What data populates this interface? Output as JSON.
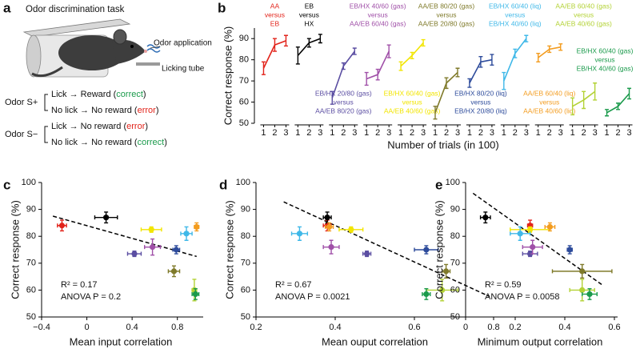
{
  "panel_labels": [
    "a",
    "b",
    "c",
    "d",
    "e"
  ],
  "panel_a": {
    "title": "Odor discrimination task",
    "callouts": [
      "Odor application",
      "Licking tube"
    ],
    "rules": [
      {
        "stimulus": "Odor S+",
        "outcomes": [
          [
            "Lick → Reward (",
            "correct",
            ")"
          ],
          [
            "No lick → No reward (",
            "error",
            ")"
          ]
        ]
      },
      {
        "stimulus": "Odor S−",
        "outcomes": [
          [
            "Lick → No reward (",
            "error",
            ")"
          ],
          [
            "No lick → No reward (",
            "correct",
            ")"
          ]
        ]
      }
    ]
  },
  "chart_data": [
    {
      "type": "line",
      "xlabel": "Number of trials (in 100)",
      "ylabel": "Correct response (%)",
      "x": [
        1,
        2,
        3
      ],
      "xlim": [
        1,
        3
      ],
      "xticks": [
        1,
        2,
        3
      ],
      "ylim": [
        50,
        95
      ],
      "yticks": [
        50,
        60,
        70,
        80,
        90
      ],
      "series": [
        {
          "name": [
            "AA",
            "versus",
            "EB"
          ],
          "color": "#e2231a",
          "values": [
            76,
            87,
            89
          ],
          "errors": [
            3,
            3,
            2.5
          ]
        },
        {
          "name": [
            "EB",
            "versus",
            "HX"
          ],
          "color": "#000000",
          "values": [
            82,
            88,
            90
          ],
          "errors": [
            4,
            2,
            2
          ]
        },
        {
          "name": [
            "EB/HX 20/80 (gas)",
            "versus",
            "AA/EB 80/20 (gas)"
          ],
          "color": "#5b4ea2",
          "values": [
            62,
            77,
            84
          ],
          "errors": [
            3,
            1.5,
            1.5
          ]
        },
        {
          "name": [
            "EB/HX 40/60 (gas)",
            "versus",
            "AA/EB 60/40 (gas)"
          ],
          "color": "#a050a8",
          "values": [
            71,
            73,
            84
          ],
          "errors": [
            3,
            2.5,
            3
          ]
        },
        {
          "name": [
            "EB/HX 60/40 (gas)",
            "versus",
            "AA/EB 40/60 (gas)"
          ],
          "color": "#f2e500",
          "values": [
            77,
            82,
            88
          ],
          "errors": [
            2,
            1.5,
            1.5
          ]
        },
        {
          "name": [
            "AA/EB 80/20 (gas)",
            "versus",
            "AA/EB 20/80 (gas)"
          ],
          "color": "#7f7a2a",
          "values": [
            55,
            69,
            74
          ],
          "errors": [
            3,
            2.5,
            2
          ]
        },
        {
          "name": [
            "EB/HX 80/20 (liq)",
            "versus",
            "EB/HX 20/80 (liq)"
          ],
          "color": "#2d4b9b",
          "values": [
            69,
            79,
            80
          ],
          "errors": [
            2,
            2.5,
            2.5
          ]
        },
        {
          "name": [
            "EB/HX 60/40 (liq)",
            "versus",
            "EB/HX 40/60 (liq)"
          ],
          "color": "#3fb8e8",
          "values": [
            70,
            83,
            90
          ],
          "errors": [
            4,
            2,
            1.5
          ]
        },
        {
          "name": [
            "AA/EB 60/40 (liq)",
            "versus",
            "AA/EB 40/60 (liq)"
          ],
          "color": "#f39c1f",
          "values": [
            81,
            85,
            86
          ],
          "errors": [
            2,
            1.5,
            1.5
          ]
        },
        {
          "name": [
            "AA/EB 60/40 (gas)",
            "versus",
            "AA/EB 40/60 (gas)"
          ],
          "color": "#b3d235",
          "values": [
            58,
            61,
            65
          ],
          "errors": [
            4,
            4,
            4
          ]
        },
        {
          "name": [
            "EB/HX 60/40 (gas)",
            "versus",
            "EB/HX 40/60 (gas)"
          ],
          "color": "#1a9a4b",
          "values": [
            55,
            58,
            64
          ],
          "errors": [
            1.5,
            1.5,
            2.5
          ]
        }
      ]
    },
    {
      "type": "scatter",
      "xlabel": "Mean input correlation",
      "ylabel": "Correct response (%)",
      "xlim": [
        -0.4,
        1.0
      ],
      "xticks": [
        {
          "value": -0.4,
          "label": "−0.4"
        },
        0,
        0.4,
        0.8
      ],
      "ylim": [
        50,
        100
      ],
      "yticks": [
        50,
        60,
        70,
        80,
        90,
        100
      ],
      "colors": [
        "#e2231a",
        "#000000",
        "#5b4ea2",
        "#a050a8",
        "#f2e500",
        "#7f7a2a",
        "#2d4b9b",
        "#3fb8e8",
        "#f39c1f",
        "#b3d235",
        "#1a9a4b"
      ],
      "x": [
        -0.22,
        0.17,
        0.42,
        0.58,
        0.57,
        0.77,
        0.79,
        0.88,
        0.97,
        0.95,
        0.96
      ],
      "x_errors": [
        0.04,
        0.1,
        0.06,
        0.07,
        0.09,
        0.05,
        0.03,
        0.05,
        0.02,
        0.02,
        0.03
      ],
      "values": [
        84,
        87,
        73.5,
        76,
        82.5,
        67,
        75,
        81,
        83.5,
        60,
        58.5
      ],
      "errors": [
        2,
        2,
        1,
        3,
        1,
        2,
        1.5,
        2.5,
        1.5,
        4,
        2
      ],
      "fit": {
        "x": [
          -0.3,
          0.97
        ],
        "values": [
          87.5,
          72.5
        ]
      },
      "annotations": [
        "R² = 0.17",
        "ANOVA P = 0.2"
      ]
    },
    {
      "type": "scatter",
      "xlabel": "Mean ouput correlation",
      "ylabel": "Correct response (%)",
      "xlim": [
        0.2,
        0.8
      ],
      "xticks": [
        0.2,
        0.4,
        0.6,
        0.8
      ],
      "ylim": [
        50,
        100
      ],
      "yticks": [
        50,
        60,
        70,
        80,
        90,
        100
      ],
      "colors": [
        "#e2231a",
        "#000000",
        "#5b4ea2",
        "#a050a8",
        "#f2e500",
        "#7f7a2a",
        "#2d4b9b",
        "#3fb8e8",
        "#f39c1f",
        "#b3d235",
        "#1a9a4b"
      ],
      "x": [
        0.38,
        0.38,
        0.48,
        0.39,
        0.44,
        0.68,
        0.63,
        0.31,
        0.385,
        0.67,
        0.63
      ],
      "x_errors": [
        0.01,
        0.01,
        0.01,
        0.02,
        0.03,
        0.01,
        0.03,
        0.02,
        0.01,
        0.04,
        0.01
      ],
      "values": [
        84,
        87,
        73.5,
        76,
        82.5,
        67,
        75,
        81,
        83.5,
        60,
        58.5
      ],
      "errors": [
        2,
        2,
        1,
        2.5,
        1,
        2.5,
        1.5,
        2.5,
        1.5,
        4,
        2
      ],
      "fit": {
        "x": [
          0.27,
          0.79
        ],
        "values": [
          92.8,
          57.6
        ]
      },
      "annotations": [
        "R² = 0.67",
        "ANOVA P = 0.0021"
      ]
    },
    {
      "type": "scatter",
      "xlabel": "Minimum output correlation",
      "ylabel": "Correct response (%)",
      "xlim": [
        0,
        0.6
      ],
      "xticks": [
        0,
        0.2,
        0.4,
        0.6
      ],
      "ylim": [
        50,
        100
      ],
      "yticks": [
        50,
        60,
        70,
        80,
        90,
        100
      ],
      "colors": [
        "#e2231a",
        "#000000",
        "#5b4ea2",
        "#a050a8",
        "#f2e500",
        "#7f7a2a",
        "#2d4b9b",
        "#3fb8e8",
        "#f39c1f",
        "#b3d235",
        "#1a9a4b"
      ],
      "x": [
        0.26,
        0.08,
        0.26,
        0.27,
        0.26,
        0.47,
        0.42,
        0.22,
        0.34,
        0.47,
        0.5
      ],
      "x_errors": [
        0.01,
        0.02,
        0.03,
        0.04,
        0.08,
        0.12,
        0.01,
        0.04,
        0.02,
        0.05,
        0.03
      ],
      "values": [
        84,
        87,
        73.5,
        76,
        82.5,
        67,
        75,
        81,
        83.5,
        60,
        58.5
      ],
      "errors": [
        2,
        2,
        1,
        2.5,
        1,
        2.5,
        1.5,
        2.5,
        1.5,
        4,
        2
      ],
      "fit": {
        "x": [
          0.03,
          0.55
        ],
        "values": [
          96,
          62
        ]
      },
      "annotations": [
        "R² = 0.59",
        "ANOVA P = 0.0058"
      ]
    }
  ]
}
